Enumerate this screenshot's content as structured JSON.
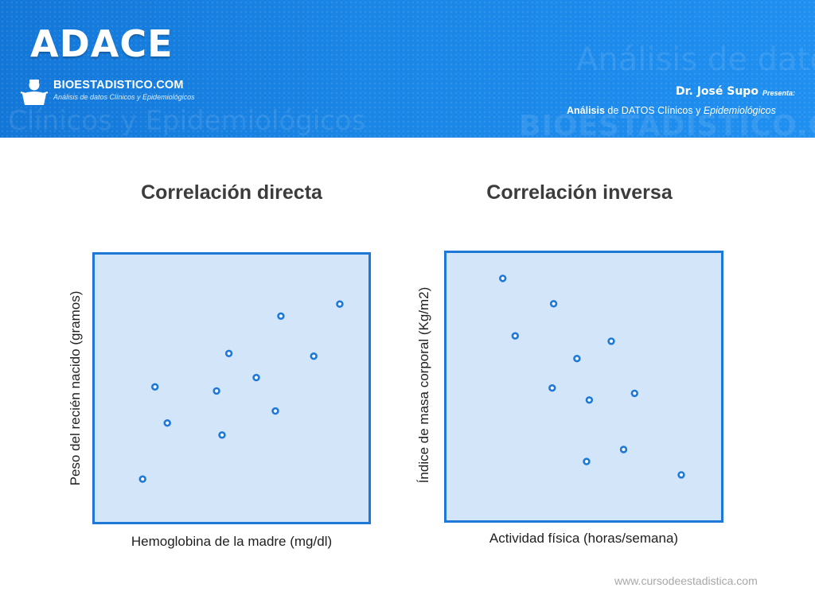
{
  "header": {
    "app_title": "ADACE",
    "brand_name": "BIOESTADISTICO.COM",
    "brand_subtitle": "Análisis de datos Clínicos y Epidemiológicos",
    "author": "Dr. José Supo",
    "presenta": "Presenta:",
    "tagline_bold": "Análisis",
    "tagline_mid": " de DATOS Clínicos y ",
    "tagline_italic": "Epidemiológicos",
    "bg_text_analisis": "Análisis de datos",
    "bg_text_clinicos": "Clínicos y Epidemiológicos",
    "bg_text_brand": "BIOESTADISTICO.COM",
    "logo_icon": "person-bust-icon"
  },
  "chart_data": [
    {
      "type": "scatter",
      "title": "Correlación directa",
      "xlabel": "Hemoglobina de la madre (mg/dl)",
      "ylabel": "Peso del recién nacido (gramos)",
      "xlim": [
        0,
        100
      ],
      "ylim": [
        0,
        100
      ],
      "grid": false,
      "marker_color": "#1d78d8",
      "background_color": "#d3e5f8",
      "points": [
        {
          "x": 17.5,
          "y": 16.0
        },
        {
          "x": 22.0,
          "y": 50.5
        },
        {
          "x": 26.5,
          "y": 37.0
        },
        {
          "x": 44.5,
          "y": 49.0
        },
        {
          "x": 46.5,
          "y": 32.5
        },
        {
          "x": 49.0,
          "y": 63.0
        },
        {
          "x": 59.0,
          "y": 54.0
        },
        {
          "x": 66.0,
          "y": 41.5
        },
        {
          "x": 68.0,
          "y": 77.0
        },
        {
          "x": 80.0,
          "y": 62.0
        },
        {
          "x": 89.5,
          "y": 81.5
        }
      ]
    },
    {
      "type": "scatter",
      "title": "Correlación inversa",
      "xlabel": "Actividad física (horas/semana)",
      "ylabel": "Índice de masa corporal (Kg/m2)",
      "xlim": [
        0,
        100
      ],
      "ylim": [
        0,
        100
      ],
      "grid": false,
      "marker_color": "#1d78d8",
      "background_color": "#d3e5f8",
      "points": [
        {
          "x": 20.5,
          "y": 90.5
        },
        {
          "x": 25.0,
          "y": 69.0
        },
        {
          "x": 39.0,
          "y": 81.0
        },
        {
          "x": 38.5,
          "y": 49.5
        },
        {
          "x": 47.5,
          "y": 60.5
        },
        {
          "x": 52.0,
          "y": 45.0
        },
        {
          "x": 51.0,
          "y": 22.0
        },
        {
          "x": 60.0,
          "y": 67.0
        },
        {
          "x": 64.5,
          "y": 26.5
        },
        {
          "x": 68.5,
          "y": 47.5
        },
        {
          "x": 85.5,
          "y": 17.0
        }
      ]
    }
  ],
  "footer": {
    "url": "www.cursodeestadistica.com"
  }
}
